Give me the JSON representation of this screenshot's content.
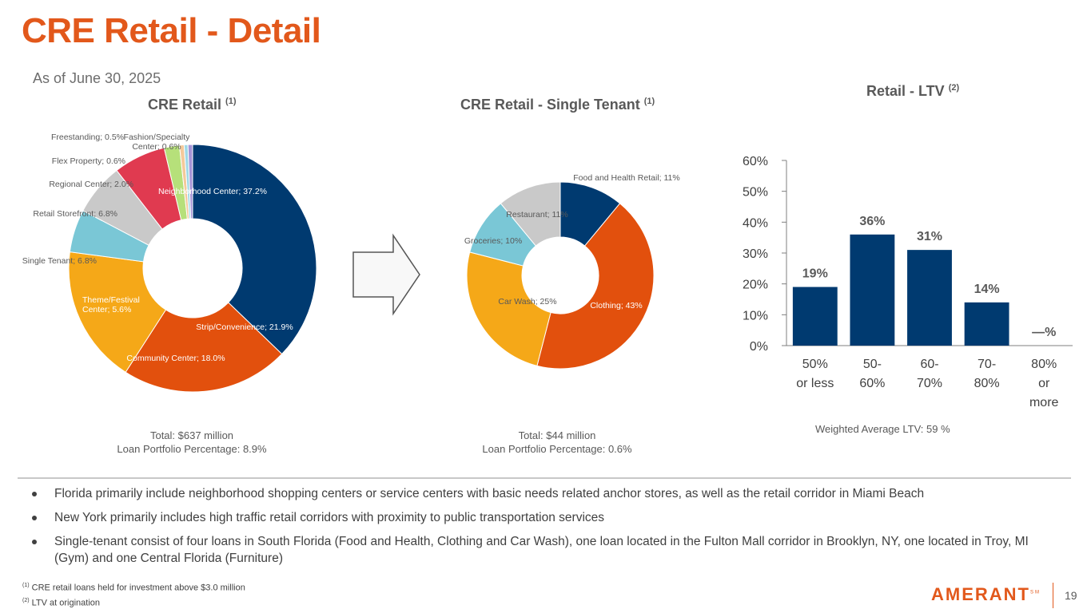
{
  "page": {
    "title": "CRE Retail - Detail",
    "as_of": "As of June 30, 2025",
    "page_number": "19",
    "logo_text": "AMERANT",
    "logo_mark": "SM",
    "footnotes": [
      {
        "mark": "(1)",
        "text": "CRE retail loans held for investment above $3.0 million"
      },
      {
        "mark": "(2)",
        "text": "LTV at origination"
      }
    ],
    "bullets": [
      "Florida primarily include neighborhood shopping centers or service centers with basic needs related anchor stores, as well as the retail corridor in Miami Beach",
      "New York primarily includes high traffic retail corridors with proximity to public transportation services",
      "Single-tenant consist of four loans in  South Florida (Food and Health, Clothing and Car Wash),  one loan located in the Fulton Mall corridor in Brooklyn, NY, one located in Troy, MI (Gym) and one Central Florida (Furniture)"
    ]
  },
  "chart_data": [
    {
      "type": "pie",
      "title": "CRE Retail",
      "title_note": "(1)",
      "donut": true,
      "slices": [
        {
          "label": "Neighborhood Center; 37.2%",
          "value": 37.2,
          "color": "#003A70"
        },
        {
          "label": "Strip/Convenience; 21.9%",
          "value": 21.9,
          "color": "#E2500D"
        },
        {
          "label": "Community Center; 18.0%",
          "value": 18.0,
          "color": "#F5A818"
        },
        {
          "label": "Theme/Festival Center; 5.6%",
          "value": 5.6,
          "color": "#7AC7D6"
        },
        {
          "label": "Single Tenant; 6.8%",
          "value": 6.8,
          "color": "#C9C9C9"
        },
        {
          "label": "Retail Storefront; 6.8%",
          "value": 6.8,
          "color": "#E03A50"
        },
        {
          "label": "Regional Center; 2.0%",
          "value": 2.0,
          "color": "#B6E07A"
        },
        {
          "label": "Flex Property; 0.6%",
          "value": 0.6,
          "color": "#F4C99A"
        },
        {
          "label": "Freestanding; 0.5%",
          "value": 0.5,
          "color": "#9ED8E6"
        },
        {
          "label": "Fashion/Specialty Center; 0.6%",
          "value": 0.6,
          "color": "#A593D6"
        }
      ],
      "total_line1": "Total: $637 million",
      "total_line2": "Loan Portfolio Percentage: 8.9%"
    },
    {
      "type": "pie",
      "title": "CRE Retail - Single Tenant",
      "title_note": "(1)",
      "donut": true,
      "slices": [
        {
          "label": "Food and Health Retail; 11%",
          "value": 11,
          "color": "#003A70"
        },
        {
          "label": "Clothing; 43%",
          "value": 43,
          "color": "#E2500D"
        },
        {
          "label": "Car Wash; 25%",
          "value": 25,
          "color": "#F5A818"
        },
        {
          "label": "Groceries; 10%",
          "value": 10,
          "color": "#7AC7D6"
        },
        {
          "label": "Restaurant; 11%",
          "value": 11,
          "color": "#C9C9C9"
        }
      ],
      "total_line1": "Total:  $44 million",
      "total_line2": "Loan Portfolio Percentage: 0.6%"
    },
    {
      "type": "bar",
      "title": "Retail - LTV",
      "title_note": "(2)",
      "categories": [
        "50% or less",
        "50-60%",
        "60-70%",
        "70-80%",
        "80% or more"
      ],
      "category_lines": [
        [
          "50%",
          "or less"
        ],
        [
          "50-",
          "60%"
        ],
        [
          "60-",
          "70%"
        ],
        [
          "70-",
          "80%"
        ],
        [
          "80%",
          "or",
          "more"
        ]
      ],
      "values": [
        19,
        36,
        31,
        14,
        0
      ],
      "data_labels": [
        "19%",
        "36%",
        "31%",
        "14%",
        "—%"
      ],
      "yticks": [
        "0%",
        "10%",
        "20%",
        "30%",
        "40%",
        "50%",
        "60%"
      ],
      "ylim": [
        0,
        60
      ],
      "bar_color": "#003A70",
      "weighted_avg": "Weighted Average LTV:  59 %"
    }
  ]
}
